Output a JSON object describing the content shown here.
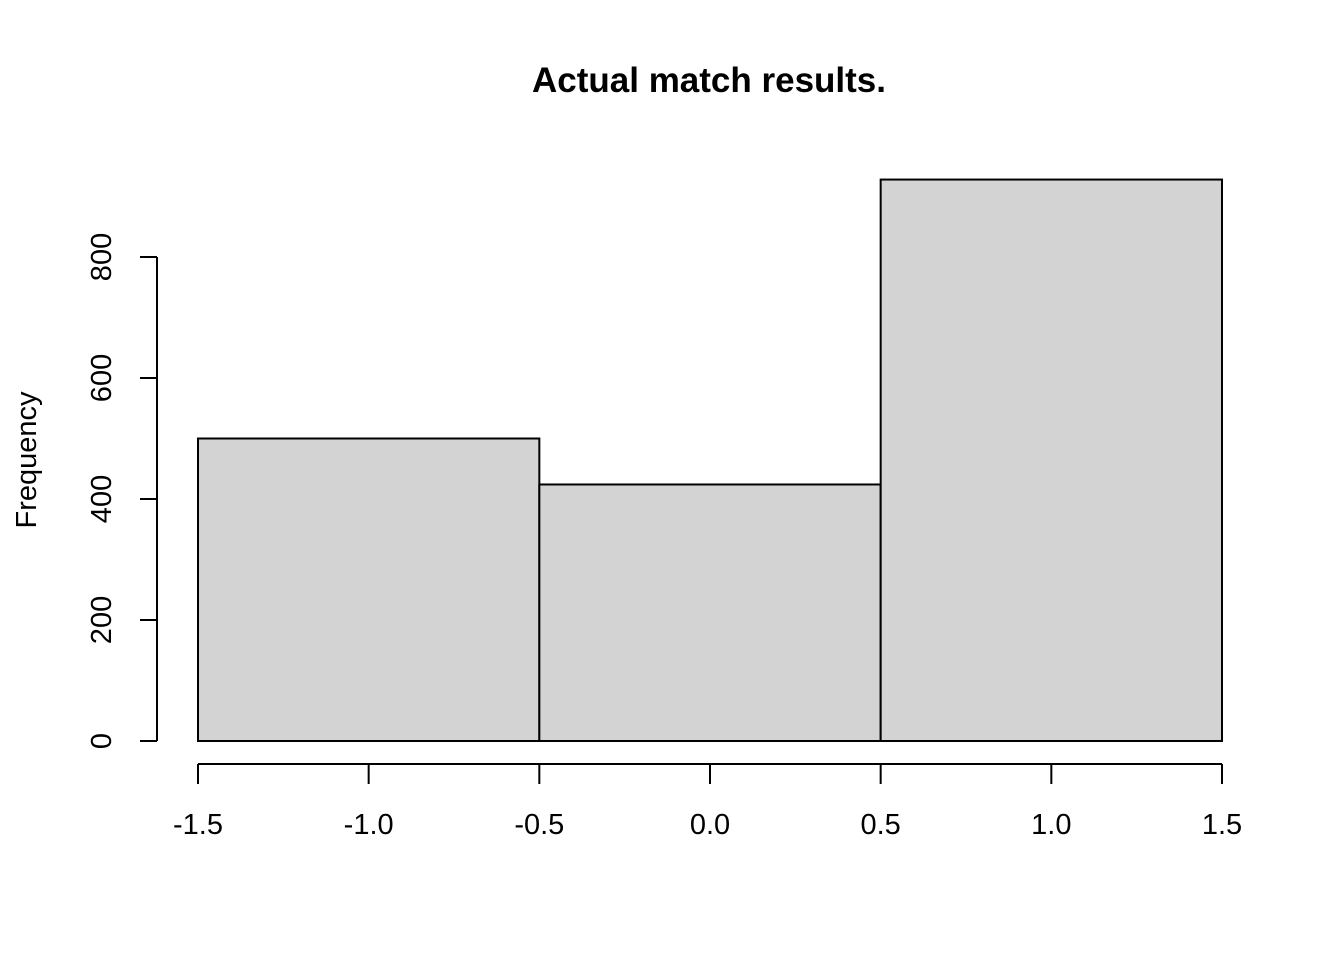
{
  "chart_data": {
    "type": "bar",
    "title": "Actual match results.",
    "xlabel": "",
    "ylabel": "Frequency",
    "bins": [
      {
        "from": -1.5,
        "to": -0.5,
        "value": 500
      },
      {
        "from": -0.5,
        "to": 0.5,
        "value": 424
      },
      {
        "from": 0.5,
        "to": 1.5,
        "value": 928
      }
    ],
    "x_ticks": [
      -1.5,
      -1.0,
      -0.5,
      0.0,
      0.5,
      1.0,
      1.5
    ],
    "x_tick_labels": [
      "-1.5",
      "-1.0",
      "-0.5",
      "0.0",
      "0.5",
      "1.0",
      "1.5"
    ],
    "y_ticks": [
      0,
      200,
      400,
      600,
      800
    ],
    "y_tick_labels": [
      "0",
      "200",
      "400",
      "600",
      "800"
    ],
    "xlim": [
      -1.5,
      1.5
    ],
    "ylim": [
      0,
      928
    ],
    "grid": false,
    "colors": {
      "bar_fill": "#d3d3d3",
      "bar_stroke": "#000000"
    }
  }
}
